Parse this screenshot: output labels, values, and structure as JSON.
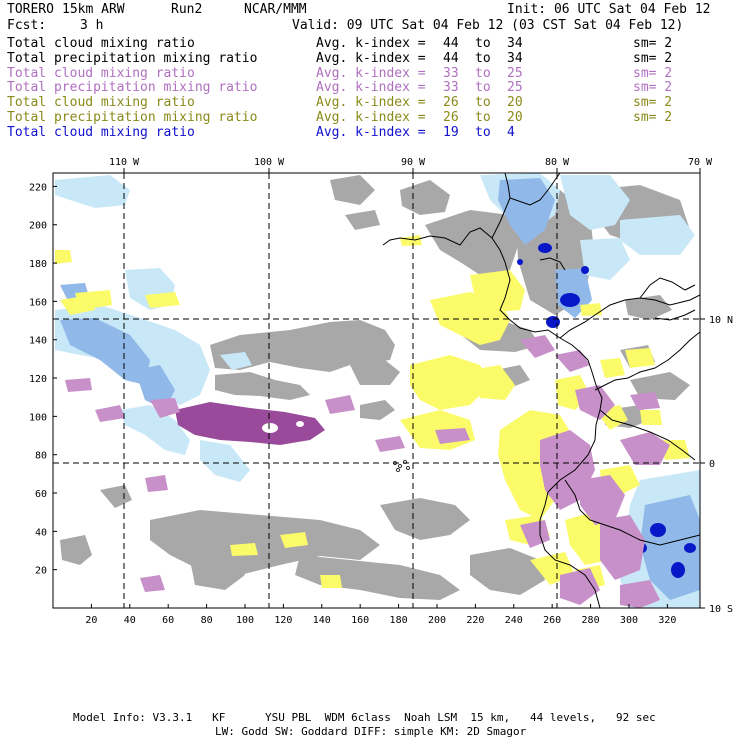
{
  "header": {
    "model": "TORERO",
    "resolution": "15km ARW",
    "run": "Run2",
    "center": "NCAR/MMM",
    "init": "Init: 06 UTC Sat 04 Feb 12",
    "fcst_label": "Fcst:",
    "fcst_value": "3 h",
    "valid": "Valid: 09 UTC Sat 04 Feb 12 (03 CST Sat 04 Feb 12)"
  },
  "legend": [
    {
      "field": "Total cloud mixing ratio",
      "index": "Avg. k-index =",
      "from": "44",
      "to_word": "to",
      "to": "34",
      "sm": "sm= 2",
      "color": "#000000"
    },
    {
      "field": "Total precipitation mixing ratio",
      "index": "Avg. k-index =",
      "from": "44",
      "to_word": "to",
      "to": "34",
      "sm": "sm= 2",
      "color": "#000000"
    },
    {
      "field": "Total cloud mixing ratio",
      "index": "Avg. k-index =",
      "from": "33",
      "to_word": "to",
      "to": "25",
      "sm": "sm= 2",
      "color": "#b070c0"
    },
    {
      "field": "Total precipitation mixing ratio",
      "index": "Avg. k-index =",
      "from": "33",
      "to_word": "to",
      "to": "25",
      "sm": "sm= 2",
      "color": "#b070c0"
    },
    {
      "field": "Total cloud mixing ratio",
      "index": "Avg. k-index =",
      "from": "26",
      "to_word": "to",
      "to": "20",
      "sm": "sm= 2",
      "color": "#8a8a1a"
    },
    {
      "field": "Total precipitation mixing ratio",
      "index": "Avg. k-index =",
      "from": "26",
      "to_word": "to",
      "to": "20",
      "sm": "sm= 2",
      "color": "#8a8a1a"
    },
    {
      "field": "Total cloud mixing ratio",
      "index": "Avg. k-index =",
      "from": "19",
      "to_word": "to",
      "to": "4",
      "sm": "",
      "color": "#1010d0"
    }
  ],
  "map": {
    "lon_labels": [
      "110 W",
      "100 W",
      "90 W",
      "80 W",
      "70 W"
    ],
    "lat_labels": [
      "10 N",
      "0",
      "10 S"
    ],
    "x_ticks": [
      "20",
      "40",
      "60",
      "80",
      "100",
      "120",
      "140",
      "160",
      "180",
      "200",
      "220",
      "240",
      "260",
      "280",
      "300",
      "320"
    ],
    "y_ticks": [
      "20",
      "40",
      "60",
      "80",
      "100",
      "120",
      "140",
      "160",
      "180",
      "200",
      "220"
    ],
    "colors": {
      "gray": "#a8a8a8",
      "yellow": "#fbfb6a",
      "purple": "#9a4a9a",
      "light_purple": "#c890c8",
      "light_blue": "#c8e8f8",
      "blue": "#90b8e8",
      "dark_blue": "#0818c8",
      "coastline": "#000000",
      "grid": "#000000"
    }
  },
  "footer": {
    "line1": "Model Info: V3.3.1   KF      YSU PBL  WDM 6class  Noah LSM  15 km,   44 levels,   92 sec",
    "line2": "LW: Godd SW: Goddard DIFF: simple KM: 2D Smagor"
  }
}
